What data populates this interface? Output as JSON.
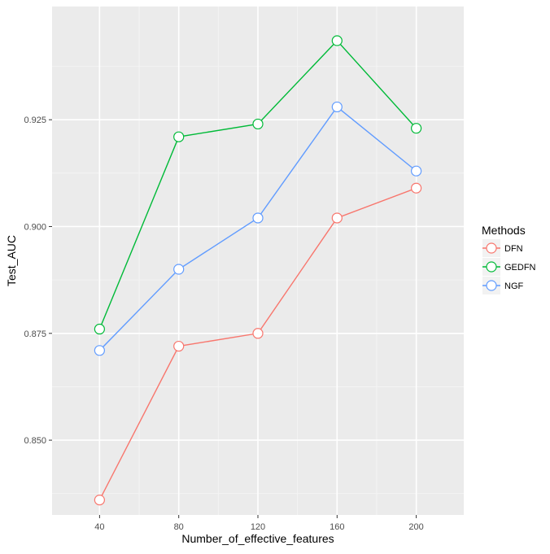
{
  "chart_data": {
    "type": "line",
    "xlabel": "Number_of_effective_features",
    "ylabel": "Test_AUC",
    "x": [
      40,
      80,
      120,
      160,
      200
    ],
    "x_tick_labels": [
      "40",
      "80",
      "120",
      "160",
      "200"
    ],
    "xlim": [
      16,
      224
    ],
    "ylim": [
      0.8325,
      0.9515
    ],
    "y_ticks": [
      0.85,
      0.875,
      0.9,
      0.925
    ],
    "y_tick_labels": [
      "0.850",
      "0.875",
      "0.900",
      "0.925"
    ],
    "grid": true,
    "legend": {
      "title": "Methods",
      "placement": "right"
    },
    "series": [
      {
        "name": "DFN",
        "color": "#F8766D",
        "values": [
          0.836,
          0.872,
          0.875,
          0.902,
          0.909
        ]
      },
      {
        "name": "GEDFN",
        "color": "#00BA38",
        "values": [
          0.876,
          0.921,
          0.924,
          0.9435,
          0.923
        ]
      },
      {
        "name": "NGF",
        "color": "#619CFF",
        "values": [
          0.871,
          0.89,
          0.902,
          0.928,
          0.913
        ]
      }
    ]
  }
}
